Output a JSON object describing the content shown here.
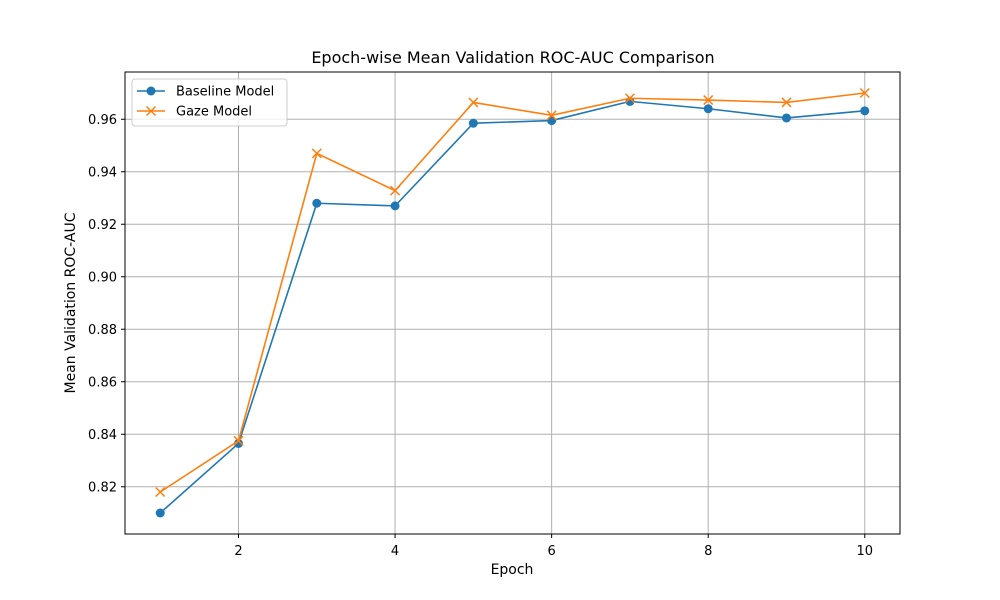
{
  "chart_data": {
    "type": "line",
    "title": "Epoch-wise Mean Validation ROC-AUC Comparison",
    "xlabel": "Epoch",
    "ylabel": "Mean Validation ROC-AUC",
    "xlim": [
      0.55,
      10.45
    ],
    "ylim": [
      0.802,
      0.978
    ],
    "xticks": [
      2,
      4,
      6,
      8,
      10
    ],
    "yticks": [
      0.82,
      0.84,
      0.86,
      0.88,
      0.9,
      0.92,
      0.94,
      0.96
    ],
    "ytick_labels": [
      "0.82",
      "0.84",
      "0.86",
      "0.88",
      "0.90",
      "0.92",
      "0.94",
      "0.96"
    ],
    "grid": true,
    "legend_position": "upper-left",
    "x": [
      1,
      2,
      3,
      4,
      5,
      6,
      7,
      8,
      9,
      10
    ],
    "series": [
      {
        "name": "Baseline Model",
        "marker": "circle",
        "color": "#1f77b4",
        "values": [
          0.81,
          0.8365,
          0.928,
          0.927,
          0.9585,
          0.9595,
          0.9668,
          0.964,
          0.9605,
          0.9632
        ]
      },
      {
        "name": "Gaze Model",
        "marker": "x",
        "color": "#ff7f0e",
        "values": [
          0.818,
          0.8375,
          0.947,
          0.9328,
          0.9664,
          0.9615,
          0.968,
          0.9673,
          0.9664,
          0.97
        ]
      }
    ]
  }
}
